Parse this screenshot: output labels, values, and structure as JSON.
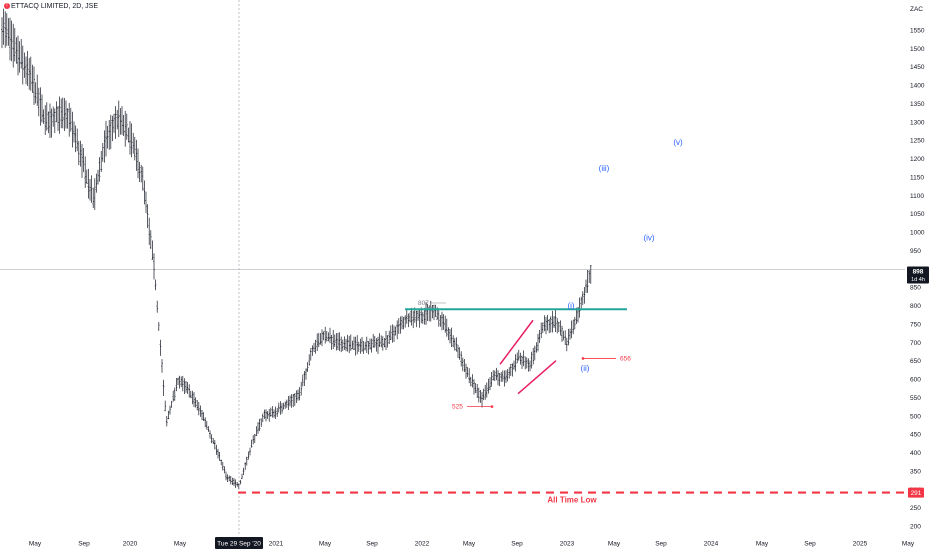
{
  "header": {
    "symbol_title": "ETTACQ LIMITED, 2D, JSE"
  },
  "chart_data": {
    "type": "bar",
    "currency": "ZAC",
    "ylim": [
      175,
      1640
    ],
    "y_ticks": [
      200,
      250,
      300,
      350,
      400,
      450,
      500,
      550,
      600,
      650,
      700,
      750,
      800,
      850,
      900,
      950,
      1000,
      1050,
      1100,
      1150,
      1200,
      1250,
      1300,
      1350,
      1400,
      1450,
      1500,
      1550
    ],
    "x_ticks": [
      "May",
      "Sep",
      "2020",
      "May",
      "Tue 29 Sep '20",
      "2021",
      "May",
      "Sep",
      "2022",
      "May",
      "Sep",
      "2023",
      "May",
      "Sep",
      "2024",
      "May",
      "Sep",
      "2025",
      "May"
    ],
    "price_path": [
      {
        "date": "2019-01",
        "value": 1640
      },
      {
        "date": "2019-02",
        "value": 1590
      },
      {
        "date": "2019-04",
        "value": 1470
      },
      {
        "date": "2019-05",
        "value": 1410
      },
      {
        "date": "2019-06",
        "value": 1300
      },
      {
        "date": "2019-07",
        "value": 1320
      },
      {
        "date": "2019-08",
        "value": 1310
      },
      {
        "date": "2019-09",
        "value": 1200
      },
      {
        "date": "2019-10",
        "value": 1090
      },
      {
        "date": "2019-11",
        "value": 1250
      },
      {
        "date": "2019-12",
        "value": 1310
      },
      {
        "date": "2020-01",
        "value": 1260
      },
      {
        "date": "2020-02",
        "value": 1150
      },
      {
        "date": "2020-03",
        "value": 900
      },
      {
        "date": "2020-04",
        "value": 480
      },
      {
        "date": "2020-05",
        "value": 600
      },
      {
        "date": "2020-06",
        "value": 560
      },
      {
        "date": "2020-07",
        "value": 500
      },
      {
        "date": "2020-08",
        "value": 420
      },
      {
        "date": "2020-09",
        "value": 330
      },
      {
        "date": "2020-10",
        "value": 310
      },
      {
        "date": "2020-11",
        "value": 420
      },
      {
        "date": "2020-12",
        "value": 500
      },
      {
        "date": "2021-01",
        "value": 510
      },
      {
        "date": "2021-03",
        "value": 560
      },
      {
        "date": "2021-04",
        "value": 680
      },
      {
        "date": "2021-05",
        "value": 720
      },
      {
        "date": "2021-06",
        "value": 700
      },
      {
        "date": "2021-08",
        "value": 690
      },
      {
        "date": "2021-10",
        "value": 700
      },
      {
        "date": "2021-12",
        "value": 770
      },
      {
        "date": "2022-01",
        "value": 770
      },
      {
        "date": "2022-02",
        "value": 790
      },
      {
        "date": "2022-03",
        "value": 740
      },
      {
        "date": "2022-04",
        "value": 680
      },
      {
        "date": "2022-05",
        "value": 600
      },
      {
        "date": "2022-06",
        "value": 545
      },
      {
        "date": "2022-07",
        "value": 610
      },
      {
        "date": "2022-08",
        "value": 600
      },
      {
        "date": "2022-09",
        "value": 660
      },
      {
        "date": "2022-10",
        "value": 640
      },
      {
        "date": "2022-11",
        "value": 740
      },
      {
        "date": "2022-12",
        "value": 760
      },
      {
        "date": "2023-01",
        "value": 700
      },
      {
        "date": "2023-02",
        "value": 790
      },
      {
        "date": "2023-03",
        "value": 898
      }
    ],
    "last_price": "898",
    "last_price_countdown": "1d 4h",
    "ath_line": {
      "value": 291,
      "label": "291",
      "text": "All Time Low",
      "color": "#f23645"
    },
    "resistance_line": {
      "value": 790,
      "color": "#26a69a"
    },
    "annotations": [
      {
        "text": "807",
        "value": 807
      },
      {
        "text": "525",
        "value": 525,
        "color": "#f23645"
      },
      {
        "text": "656",
        "value": 656,
        "color": "#f23645"
      }
    ],
    "wave_labels": [
      {
        "text": "(i)",
        "value": 800
      },
      {
        "text": "(ii)",
        "value": 630
      },
      {
        "text": "(iii)",
        "value": 1175
      },
      {
        "text": "(iv)",
        "value": 985
      },
      {
        "text": "(v)",
        "value": 1245
      }
    ],
    "wave_color": "#2962ff",
    "channel_color": "#e91e63",
    "crosshair_date": "Tue 29 Sep '20"
  }
}
